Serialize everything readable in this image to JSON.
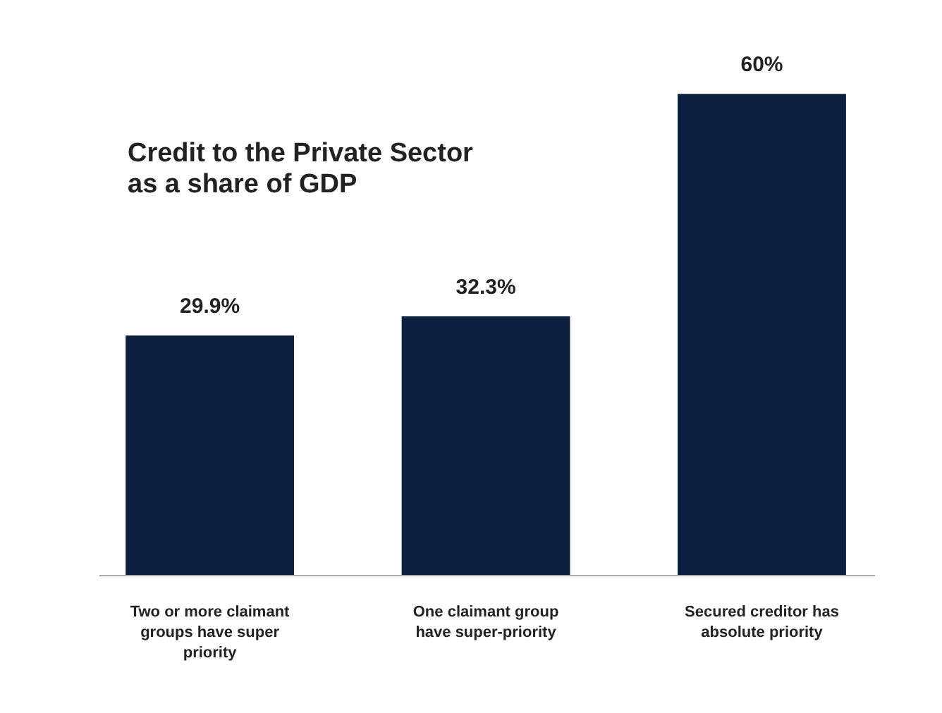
{
  "chart_data": {
    "type": "bar",
    "title": "Credit to the Private Sector\nas a share of GDP",
    "categories": [
      "Two or more claimant groups have super priority",
      "One claimant group have super-priority",
      "Secured creditor has absolute priority"
    ],
    "values": [
      29.9,
      32.3,
      60
    ],
    "color": "#0c1f3e",
    "value_labels": [
      "29.9%",
      "32.3%",
      "60%"
    ],
    "grid": false
  }
}
